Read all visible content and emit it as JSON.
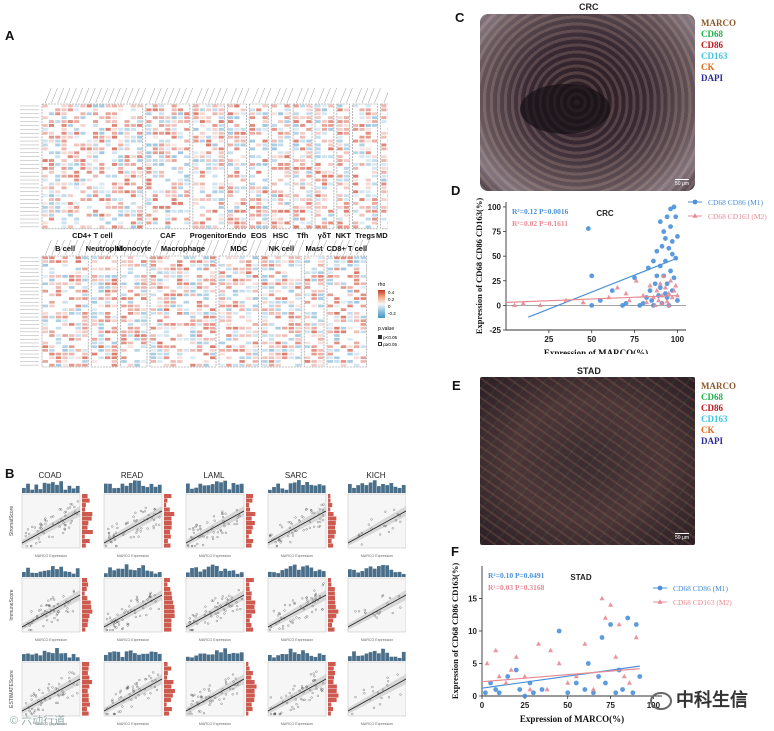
{
  "panels": {
    "A": "A",
    "B": "B",
    "C": "C",
    "D": "D",
    "E": "E",
    "F": "F"
  },
  "heatmap": {
    "top_groups": [
      "CD4+ T cell",
      "CAF",
      "Progenitor",
      "Endo",
      "EOS",
      "HSC",
      "Tfh",
      "γδT",
      "NKT",
      "Tregs",
      "MDSC"
    ],
    "bottom_groups": [
      "B cell",
      "Neutrophil",
      "Monocyte",
      "Macrophage",
      "MDC",
      "NK cell",
      "Mast",
      "CD8+ T cell"
    ],
    "legend_title": "rho",
    "legend_ticks": [
      "0.4",
      "0.2",
      "0",
      "-0.2"
    ],
    "pvalue_title": "p.value",
    "pvalue_items": [
      "p<0.05",
      "p≥0.05"
    ],
    "colors": {
      "pos": "#d6604d",
      "neg": "#4393c3"
    }
  },
  "scatter_grid": {
    "cancers": [
      "COAD",
      "READ",
      "LAML",
      "SARC",
      "KICH"
    ],
    "rows": [
      "StromalScore",
      "ImmuneScore",
      "ESTIMATEScore"
    ],
    "xlabel": "MARCO Expression",
    "hist_top_color": "#4a6f8a",
    "hist_side_color": "#cc5a4f"
  },
  "if_images": {
    "crc_title": "CRC",
    "stad_title": "STAD",
    "scale": "50 μm",
    "stains": [
      {
        "name": "MARCO",
        "color": "#8b5a2b"
      },
      {
        "name": "CD68",
        "color": "#22b14c"
      },
      {
        "name": "CD86",
        "color": "#c0161c"
      },
      {
        "name": "CD163",
        "color": "#3fc6e0"
      },
      {
        "name": "CK",
        "color": "#e06a1b"
      },
      {
        "name": "DAPI",
        "color": "#2a2a9a"
      }
    ]
  },
  "chart_data": [
    {
      "id": "D",
      "type": "scatter",
      "title": "CRC",
      "xlabel": "Expression of MARCO(%)",
      "ylabel": "Expression of CD68 CD86 CD163(%)",
      "xlim": [
        0,
        105
      ],
      "ylim": [
        -25,
        105
      ],
      "xticks": [
        "25",
        "50",
        "75",
        "100"
      ],
      "yticks": [
        "-25",
        "0",
        "25",
        "50",
        "75",
        "100"
      ],
      "annotations": [
        "R²=0.12 P=0.0016",
        "R²=0.02 P=0.1611"
      ],
      "series": [
        {
          "name": "CD68 CD86 (M1)",
          "color": "#4a90d9",
          "marker": "circle",
          "fit": [
            [
              13,
              -12
            ],
            [
              100,
              48
            ]
          ],
          "points": [
            [
              48,
              78
            ],
            [
              50,
              30
            ],
            [
              50,
              0
            ],
            [
              55,
              5
            ],
            [
              62,
              15
            ],
            [
              68,
              0
            ],
            [
              70,
              2
            ],
            [
              75,
              28
            ],
            [
              78,
              0
            ],
            [
              80,
              2
            ],
            [
              82,
              8
            ],
            [
              83,
              38
            ],
            [
              85,
              5
            ],
            [
              86,
              0
            ],
            [
              87,
              22
            ],
            [
              88,
              55
            ],
            [
              89,
              10
            ],
            [
              90,
              18
            ],
            [
              90,
              40
            ],
            [
              91,
              60
            ],
            [
              91,
              2
            ],
            [
              92,
              30
            ],
            [
              92,
              75
            ],
            [
              93,
              12
            ],
            [
              93,
              45
            ],
            [
              94,
              90
            ],
            [
              94,
              22
            ],
            [
              95,
              0
            ],
            [
              95,
              58
            ],
            [
              96,
              35
            ],
            [
              96,
              80
            ],
            [
              97,
              15
            ],
            [
              97,
              65
            ],
            [
              98,
              100
            ],
            [
              98,
              28
            ],
            [
              99,
              48
            ],
            [
              99,
              90
            ],
            [
              100,
              5
            ],
            [
              100,
              70
            ],
            [
              88,
              30
            ],
            [
              86,
              45
            ],
            [
              84,
              15
            ],
            [
              94,
              8
            ],
            [
              96,
              98
            ],
            [
              97,
              52
            ],
            [
              93,
              68
            ],
            [
              90,
              85
            ]
          ]
        },
        {
          "name": "CD68 CD163 (M2)",
          "color": "#e88a94",
          "marker": "triangle",
          "fit": [
            [
              0,
              3
            ],
            [
              100,
              10
            ]
          ],
          "points": [
            [
              5,
              0
            ],
            [
              10,
              2
            ],
            [
              20,
              0
            ],
            [
              35,
              5
            ],
            [
              45,
              3
            ],
            [
              60,
              8
            ],
            [
              65,
              18
            ],
            [
              70,
              12
            ],
            [
              72,
              5
            ],
            [
              76,
              25
            ],
            [
              80,
              10
            ],
            [
              82,
              3
            ],
            [
              84,
              20
            ],
            [
              86,
              8
            ],
            [
              88,
              15
            ],
            [
              89,
              5
            ],
            [
              90,
              22
            ],
            [
              91,
              10
            ],
            [
              92,
              30
            ],
            [
              93,
              18
            ],
            [
              94,
              4
            ],
            [
              95,
              12
            ],
            [
              96,
              25
            ],
            [
              97,
              8
            ],
            [
              98,
              15
            ],
            [
              99,
              20
            ],
            [
              100,
              10
            ],
            [
              87,
              0
            ],
            [
              91,
              2
            ],
            [
              95,
              0
            ]
          ]
        }
      ]
    },
    {
      "id": "F",
      "type": "scatter",
      "title": "STAD",
      "xlabel": "Expression of MARCO(%)",
      "ylabel": "Expression of CD68 CD86 CD163(%)",
      "xlim": [
        0,
        105
      ],
      "ylim": [
        0,
        20
      ],
      "xticks": [
        "0",
        "25",
        "50",
        "75",
        "100"
      ],
      "yticks": [
        "0",
        "5",
        "10",
        "15"
      ],
      "annotations": [
        "R²=0.10 P=0.0491",
        "R²=0.03 P=0.3168"
      ],
      "series": [
        {
          "name": "CD68 CD86 (M1)",
          "color": "#4a90d9",
          "marker": "circle",
          "fit": [
            [
              0,
              1.2
            ],
            [
              92,
              4.6
            ]
          ],
          "points": [
            [
              2,
              0.5
            ],
            [
              5,
              2
            ],
            [
              8,
              1
            ],
            [
              10,
              0.5
            ],
            [
              15,
              3
            ],
            [
              20,
              4
            ],
            [
              22,
              1
            ],
            [
              25,
              0
            ],
            [
              28,
              2
            ],
            [
              30,
              0.5
            ],
            [
              35,
              1
            ],
            [
              45,
              10
            ],
            [
              50,
              0.5
            ],
            [
              55,
              2
            ],
            [
              60,
              1
            ],
            [
              62,
              5
            ],
            [
              65,
              0.5
            ],
            [
              68,
              3
            ],
            [
              70,
              9
            ],
            [
              72,
              2
            ],
            [
              75,
              11
            ],
            [
              78,
              0.5
            ],
            [
              80,
              4
            ],
            [
              82,
              1
            ],
            [
              85,
              12
            ],
            [
              88,
              0.5
            ],
            [
              90,
              11
            ],
            [
              92,
              3
            ]
          ]
        },
        {
          "name": "CD68 CD163 (M2)",
          "color": "#e88a94",
          "marker": "triangle",
          "fit": [
            [
              0,
              2.2
            ],
            [
              92,
              4.2
            ]
          ],
          "points": [
            [
              3,
              5
            ],
            [
              8,
              7
            ],
            [
              10,
              3
            ],
            [
              14,
              2
            ],
            [
              17,
              4
            ],
            [
              20,
              6
            ],
            [
              25,
              3
            ],
            [
              28,
              1
            ],
            [
              33,
              8
            ],
            [
              38,
              1
            ],
            [
              40,
              7
            ],
            [
              45,
              5
            ],
            [
              50,
              2
            ],
            [
              55,
              3
            ],
            [
              60,
              8
            ],
            [
              65,
              1
            ],
            [
              70,
              15
            ],
            [
              72,
              12
            ],
            [
              75,
              14
            ],
            [
              78,
              6
            ],
            [
              80,
              11
            ],
            [
              83,
              3
            ],
            [
              86,
              2
            ],
            [
              90,
              9
            ]
          ]
        }
      ]
    }
  ],
  "watermark": {
    "left": "© 六动行道",
    "right": "中科生信"
  }
}
